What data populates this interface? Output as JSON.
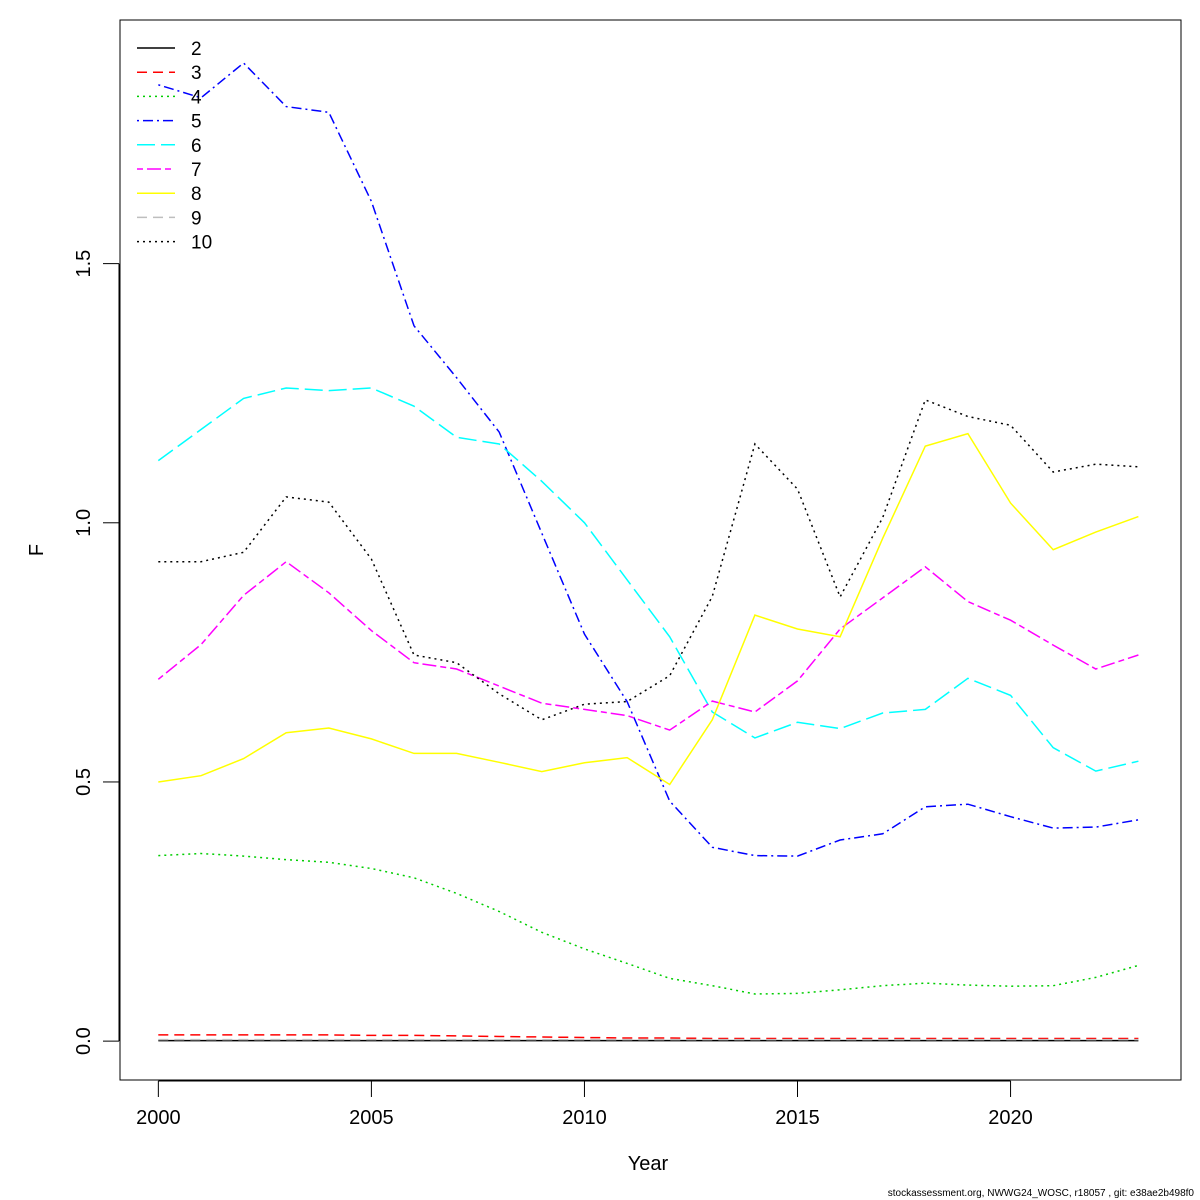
{
  "chart_data": {
    "type": "line",
    "title": "",
    "xlabel": "Year",
    "ylabel": "F",
    "xlim": [
      1999.1,
      2024.0
    ],
    "ylim": [
      -0.075,
      1.97
    ],
    "x_ticks": [
      2000,
      2005,
      2010,
      2015,
      2020
    ],
    "y_ticks": [
      0.0,
      0.5,
      1.0,
      1.5
    ],
    "y_tick_labels": [
      "0.0",
      "0.5",
      "1.0",
      "1.5"
    ],
    "legend_position": "top-left",
    "x": [
      2000,
      2001,
      2002,
      2003,
      2004,
      2005,
      2006,
      2007,
      2008,
      2009,
      2010,
      2011,
      2012,
      2013,
      2014,
      2015,
      2016,
      2017,
      2018,
      2019,
      2020,
      2021,
      2022,
      2023
    ],
    "series": [
      {
        "name": "2",
        "color": "#000000",
        "dash": "solid",
        "values": [
          0.001,
          0.001,
          0.001,
          0.001,
          0.001,
          0.001,
          0.001,
          0.001,
          0.001,
          0.001,
          0.001,
          0.001,
          0.001,
          0.001,
          0.001,
          0.001,
          0.001,
          0.001,
          0.001,
          0.001,
          0.001,
          0.001,
          0.001,
          0.001
        ]
      },
      {
        "name": "3",
        "color": "#ff0000",
        "dash": "dashed",
        "values": [
          0.012,
          0.012,
          0.012,
          0.012,
          0.012,
          0.011,
          0.011,
          0.01,
          0.009,
          0.008,
          0.007,
          0.006,
          0.006,
          0.005,
          0.005,
          0.005,
          0.005,
          0.005,
          0.005,
          0.005,
          0.005,
          0.005,
          0.005,
          0.005
        ]
      },
      {
        "name": "4",
        "color": "#00cd00",
        "dash": "dotted",
        "values": [
          0.358,
          0.362,
          0.357,
          0.35,
          0.345,
          0.333,
          0.315,
          0.285,
          0.25,
          0.21,
          0.178,
          0.15,
          0.121,
          0.107,
          0.091,
          0.092,
          0.099,
          0.107,
          0.112,
          0.108,
          0.106,
          0.107,
          0.123,
          0.146
        ]
      },
      {
        "name": "5",
        "color": "#0000ff",
        "dash": "dotdash",
        "values": [
          1.845,
          1.82,
          1.887,
          1.803,
          1.792,
          1.62,
          1.38,
          1.28,
          1.175,
          0.98,
          0.785,
          0.655,
          0.463,
          0.374,
          0.358,
          0.357,
          0.388,
          0.4,
          0.452,
          0.457,
          0.433,
          0.411,
          0.413,
          0.427
        ]
      },
      {
        "name": "6",
        "color": "#00ffff",
        "dash": "longdash",
        "values": [
          1.12,
          1.18,
          1.24,
          1.26,
          1.255,
          1.26,
          1.225,
          1.165,
          1.152,
          1.08,
          1.0,
          0.89,
          0.78,
          0.635,
          0.585,
          0.615,
          0.603,
          0.633,
          0.64,
          0.7,
          0.667,
          0.566,
          0.521,
          0.54
        ]
      },
      {
        "name": "7",
        "color": "#ff00ff",
        "dash": "twodash",
        "values": [
          0.698,
          0.765,
          0.86,
          0.925,
          0.865,
          0.792,
          0.73,
          0.718,
          0.685,
          0.652,
          0.64,
          0.628,
          0.6,
          0.656,
          0.635,
          0.695,
          0.795,
          0.855,
          0.915,
          0.848,
          0.812,
          0.764,
          0.718,
          0.745
        ]
      },
      {
        "name": "8",
        "color": "#ffff00",
        "dash": "solid",
        "values": [
          0.5,
          0.512,
          0.545,
          0.595,
          0.604,
          0.583,
          0.555,
          0.555,
          0.538,
          0.52,
          0.537,
          0.547,
          0.495,
          0.62,
          0.822,
          0.795,
          0.78,
          0.97,
          1.148,
          1.172,
          1.038,
          0.948,
          0.982,
          1.012
        ]
      },
      {
        "name": "9",
        "color": "#bebebe",
        "dash": "dashed",
        "values": [
          0.003,
          0.003,
          0.003,
          0.003,
          0.003,
          0.003,
          0.003,
          0.003,
          0.003,
          0.003,
          0.003,
          0.003,
          0.003,
          0.003,
          0.003,
          0.003,
          0.003,
          0.003,
          0.003,
          0.003,
          0.003,
          0.003,
          0.003,
          0.003
        ]
      },
      {
        "name": "10",
        "color": "#000000",
        "dash": "dotted",
        "values": [
          0.925,
          0.925,
          0.943,
          1.05,
          1.04,
          0.93,
          0.745,
          0.73,
          0.67,
          0.62,
          0.65,
          0.655,
          0.705,
          0.858,
          1.152,
          1.065,
          0.857,
          1.01,
          1.237,
          1.205,
          1.188,
          1.098,
          1.113,
          1.108
        ]
      }
    ]
  },
  "footer": {
    "text": "stockassessment.org, NWWG24_WOSC, r18057 , git: e38ae2b498f0"
  }
}
